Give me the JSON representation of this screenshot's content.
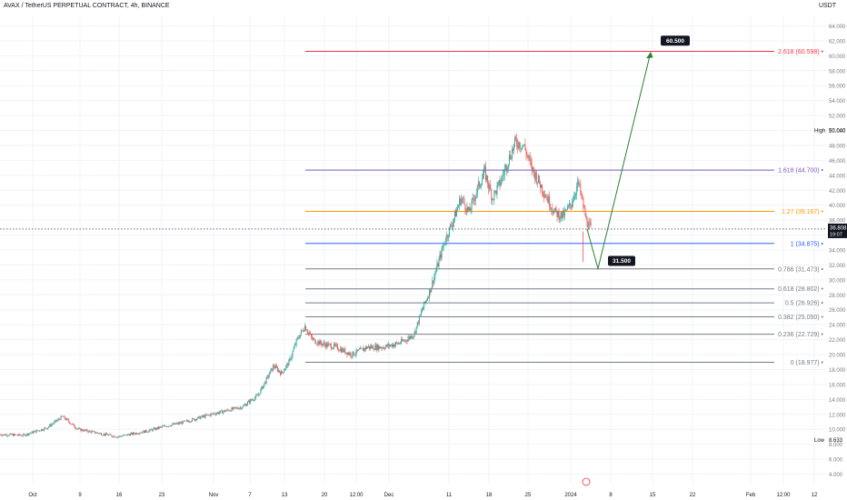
{
  "header": {
    "title": "AVAX / TetherUS PERPETUAL CONTRACT, 4h, BINANCE",
    "currency": "USDT"
  },
  "colors": {
    "bull": "#26a69a",
    "bear": "#ef5350",
    "grid": "#f0f3fa",
    "arrow": "#2e7d32"
  },
  "chart_data": {
    "type": "candlestick",
    "y_ticks": [
      4,
      6,
      8,
      10,
      12,
      14,
      16,
      18,
      20,
      22,
      24,
      26,
      28,
      30,
      32,
      34,
      36,
      38,
      40,
      42,
      44,
      46,
      48,
      50,
      52,
      54,
      56,
      58,
      60,
      62,
      64
    ],
    "y_tick_labels": [
      "4.000",
      "6.000",
      "8.000",
      "10.000",
      "12.000",
      "14.000",
      "16.000",
      "18.000",
      "20.000",
      "22.000",
      "24.000",
      "26.000",
      "28.000",
      "30.000",
      "32.000",
      "34.000",
      "36.000",
      "38.000",
      "40.000",
      "42.000",
      "44.000",
      "46.000",
      "48.000",
      "50.000",
      "52.000",
      "54.000",
      "56.000",
      "58.000",
      "60.000",
      "62.000",
      "64.000"
    ],
    "ylim": [
      3,
      66
    ],
    "x_ticks": [
      "Oct",
      "9",
      "16",
      "23",
      "Nov",
      "7",
      "13",
      "20",
      "12:00",
      "Dec",
      "11",
      "18",
      "25",
      "2024",
      "8",
      "15",
      "22",
      "Feb",
      "12:00",
      "12"
    ],
    "high": {
      "label": "High",
      "value": 50.04,
      "value_label": "50.040"
    },
    "low": {
      "label": "Low",
      "value": 8.633,
      "value_label": "8.633"
    },
    "last_price": {
      "value": 36.808,
      "label": "36.808",
      "countdown": "19:07"
    },
    "fib_levels": [
      {
        "ratio": "2.618",
        "value": 60.598,
        "label": "2.618 (60.598)",
        "color": "#f23645"
      },
      {
        "ratio": "1.618",
        "value": 44.7,
        "label": "1.618 (44.700)",
        "color": "#7e57c2"
      },
      {
        "ratio": "1.27",
        "value": 39.167,
        "label": "1.27 (39.167)",
        "color": "#ff9800"
      },
      {
        "ratio": "1",
        "value": 34.875,
        "label": "1 (34.875)",
        "color": "#2962ff"
      },
      {
        "ratio": "0.786",
        "value": 31.473,
        "label": "0.786 (31.473)",
        "color": "#787b86"
      },
      {
        "ratio": "0.618",
        "value": 28.802,
        "label": "0.618 (28.802)",
        "color": "#787b86"
      },
      {
        "ratio": "0.5",
        "value": 26.926,
        "label": "0.5 (26.926)",
        "color": "#787b86"
      },
      {
        "ratio": "0.382",
        "value": 25.05,
        "label": "0.382 (25.050)",
        "color": "#787b86"
      },
      {
        "ratio": "0.236",
        "value": 22.729,
        "label": "0.236 (22.729)",
        "color": "#787b86"
      },
      {
        "ratio": "0",
        "value": 18.977,
        "label": "0 (18.977)",
        "color": "#787b86"
      }
    ],
    "projection": {
      "points": [
        36.8,
        31.5,
        60.5
      ],
      "callouts": [
        {
          "value": 31.5,
          "label": "31.500"
        },
        {
          "value": 60.5,
          "label": "60.500"
        }
      ]
    },
    "price_path": [
      [
        0,
        9.3
      ],
      [
        3,
        9.2
      ],
      [
        6,
        10.2
      ],
      [
        8,
        11.7
      ],
      [
        10,
        10.0
      ],
      [
        13,
        9.4
      ],
      [
        15,
        9.0
      ],
      [
        17,
        9.4
      ],
      [
        19,
        9.8
      ],
      [
        21,
        10.4
      ],
      [
        23,
        10.8
      ],
      [
        25,
        11.4
      ],
      [
        27,
        12.0
      ],
      [
        29,
        12.5
      ],
      [
        31,
        13.0
      ],
      [
        32,
        13.8
      ],
      [
        33,
        14.5
      ],
      [
        34,
        16.5
      ],
      [
        35,
        18.5
      ],
      [
        36,
        17.5
      ],
      [
        37,
        19.0
      ],
      [
        38,
        22.0
      ],
      [
        39,
        23.8
      ],
      [
        40,
        22.0
      ],
      [
        41,
        21.5
      ],
      [
        43,
        21.0
      ],
      [
        45,
        20.0
      ],
      [
        47,
        21.0
      ],
      [
        49,
        21.0
      ],
      [
        51,
        21.5
      ],
      [
        52,
        22.0
      ],
      [
        53,
        22.8
      ],
      [
        54,
        26.0
      ],
      [
        55,
        28.5
      ],
      [
        56,
        32.0
      ],
      [
        57,
        35.5
      ],
      [
        58,
        38.0
      ],
      [
        59,
        41.0
      ],
      [
        60,
        39.0
      ],
      [
        61,
        42.0
      ],
      [
        62,
        44.5
      ],
      [
        63,
        41.0
      ],
      [
        64,
        43.0
      ],
      [
        65,
        46.0
      ],
      [
        66,
        48.5
      ],
      [
        67,
        48.0
      ],
      [
        68,
        45.0
      ],
      [
        69,
        43.0
      ],
      [
        70,
        41.0
      ],
      [
        71,
        39.0
      ],
      [
        72,
        38.5
      ],
      [
        73,
        40.0
      ],
      [
        74,
        43.0
      ],
      [
        75,
        38.0
      ],
      [
        75.6,
        36.8
      ]
    ],
    "dates_span": "Oct 2023 - Feb 2024"
  }
}
